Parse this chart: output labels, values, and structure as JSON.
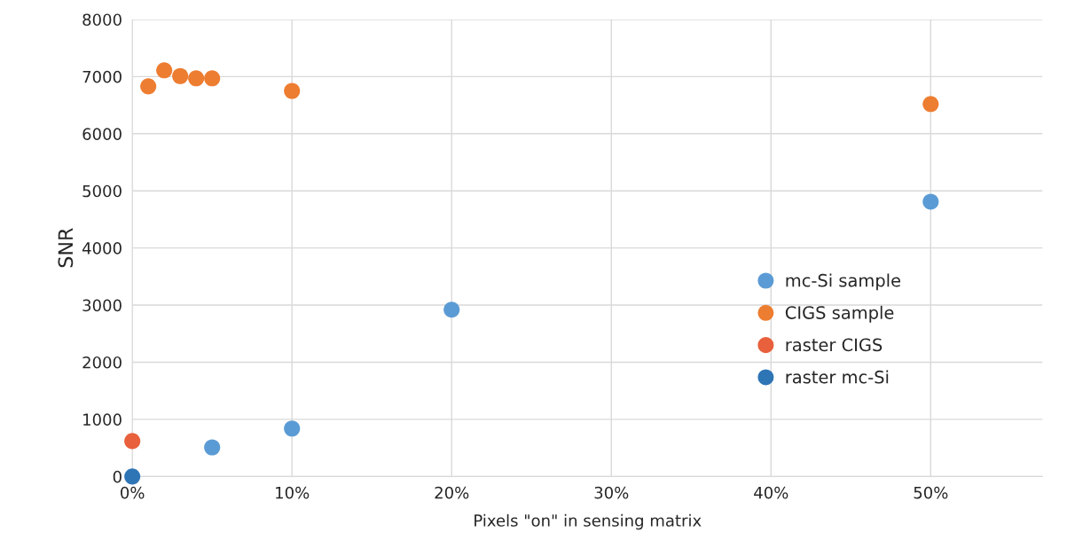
{
  "chart_data": {
    "type": "scatter",
    "xlabel": "Pixels \"on\" in sensing matrix",
    "ylabel": "SNR",
    "xlim": [
      0,
      57
    ],
    "xticks": [
      {
        "value": 0,
        "label": "0%"
      },
      {
        "value": 10,
        "label": "10%"
      },
      {
        "value": 20,
        "label": "20%"
      },
      {
        "value": 30,
        "label": "30%"
      },
      {
        "value": 40,
        "label": "40%"
      },
      {
        "value": 50,
        "label": "50%"
      }
    ],
    "ylim": [
      0,
      8000
    ],
    "yticks": [
      0,
      1000,
      2000,
      3000,
      4000,
      5000,
      6000,
      7000,
      8000
    ],
    "grid": true,
    "legend": "right",
    "marker": "circle",
    "series": [
      {
        "name": "mc-Si sample",
        "color": "#5b9bd5",
        "x": [
          5,
          10,
          20,
          50
        ],
        "values": [
          510,
          840,
          2920,
          4810
        ]
      },
      {
        "name": "CIGS sample",
        "color": "#ed7d31",
        "x": [
          1,
          2,
          3,
          4,
          5,
          10,
          50
        ],
        "values": [
          6830,
          7110,
          7010,
          6970,
          6970,
          6750,
          6520
        ]
      },
      {
        "name": "raster CIGS",
        "color": "#e8603c",
        "x": [
          0
        ],
        "values": [
          620
        ]
      },
      {
        "name": "raster mc-Si",
        "color": "#2e75b6",
        "x": [
          0
        ],
        "values": [
          0
        ]
      }
    ]
  }
}
